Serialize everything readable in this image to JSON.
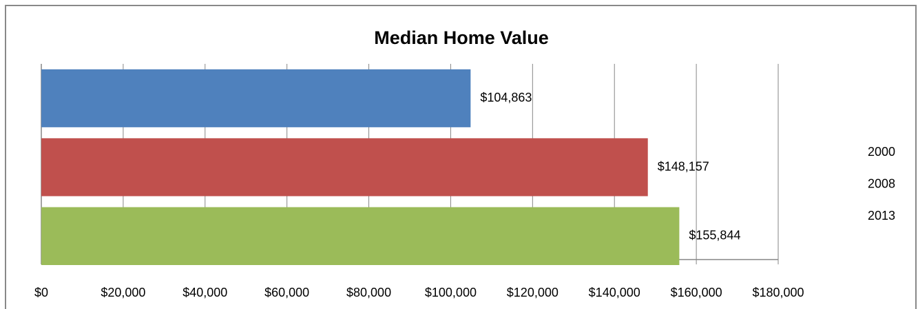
{
  "chart_data": {
    "type": "bar",
    "orientation": "horizontal",
    "title": "Median Home Value",
    "categories": [
      null
    ],
    "series": [
      {
        "name": "2000",
        "color": "#4f81bd",
        "values": [
          104863
        ],
        "value_labels": [
          "$104,863"
        ]
      },
      {
        "name": "2008",
        "color": "#c0504d",
        "values": [
          148157
        ],
        "value_labels": [
          "$148,157"
        ]
      },
      {
        "name": "2013",
        "color": "#9bbb59",
        "values": [
          155844
        ],
        "value_labels": [
          "$155,844"
        ]
      }
    ],
    "xlim": [
      0,
      180000
    ],
    "xticks": [
      {
        "value": 0,
        "label": "$0"
      },
      {
        "value": 20000,
        "label": "$20,000"
      },
      {
        "value": 40000,
        "label": "$40,000"
      },
      {
        "value": 60000,
        "label": "$60,000"
      },
      {
        "value": 80000,
        "label": "$80,000"
      },
      {
        "value": 100000,
        "label": "$100,000"
      },
      {
        "value": 120000,
        "label": "$120,000"
      },
      {
        "value": 140000,
        "label": "$140,000"
      },
      {
        "value": 160000,
        "label": "$160,000"
      },
      {
        "value": 180000,
        "label": "$180,000"
      }
    ],
    "grid": true,
    "legend": "right"
  }
}
